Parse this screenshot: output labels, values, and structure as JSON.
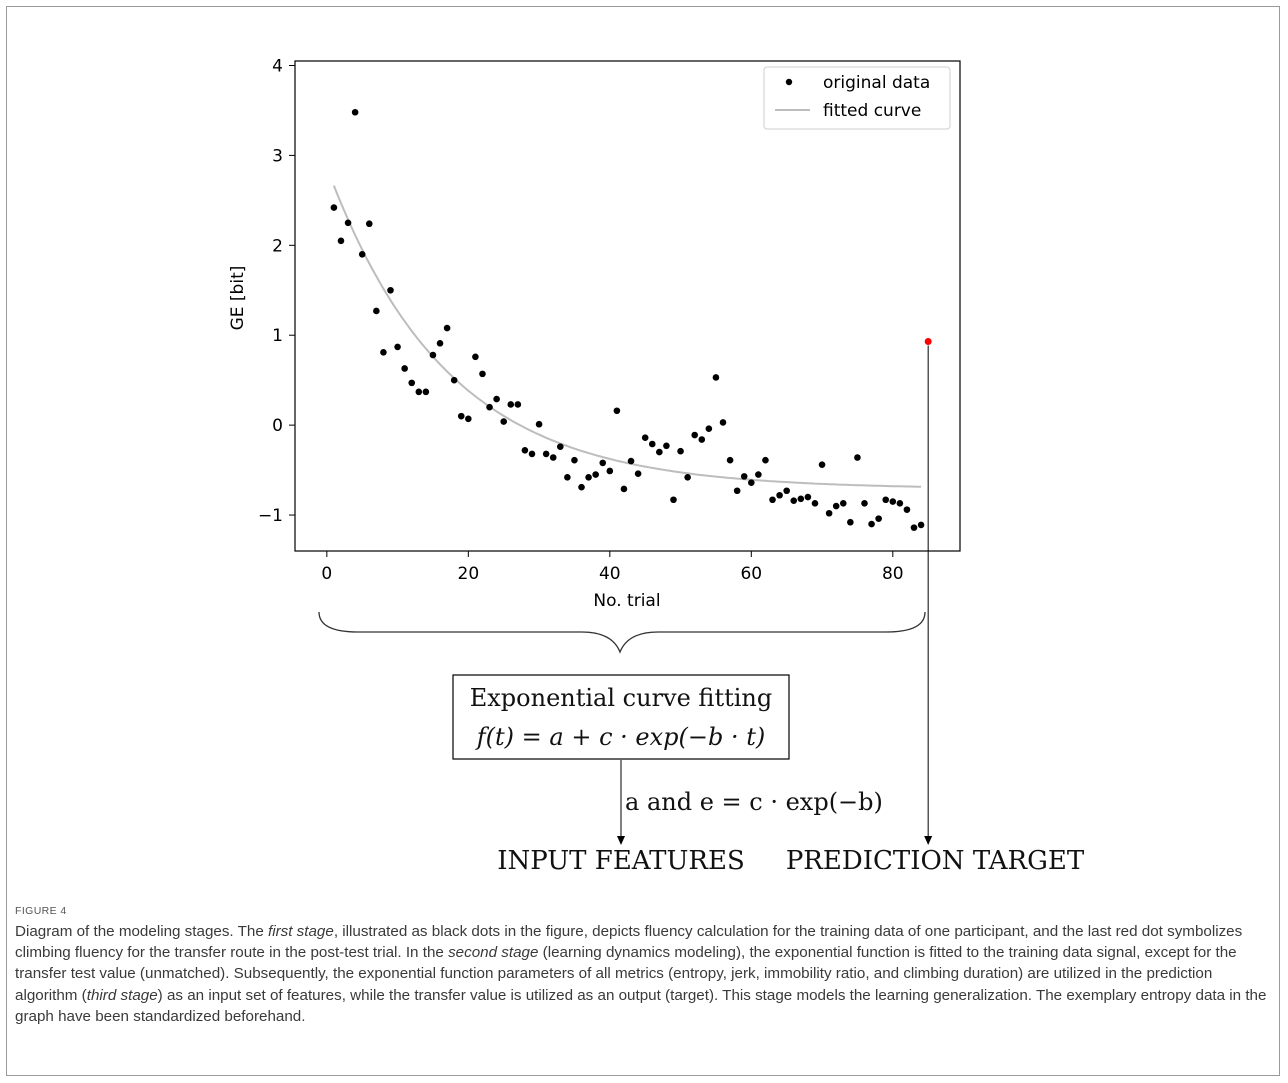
{
  "figure": {
    "label": "FIGURE 4",
    "caption_parts": [
      {
        "text": "Diagram of the modeling stages. The ",
        "italic": false
      },
      {
        "text": "first stage",
        "italic": true
      },
      {
        "text": ", illustrated as black dots in the figure, depicts fluency calculation for the training data of one participant, and the last red dot symbolizes climbing fluency for the transfer route in the post-test trial. In the ",
        "italic": false
      },
      {
        "text": "second stage",
        "italic": true
      },
      {
        "text": " (learning dynamics modeling), the exponential function is fitted to the training data signal, except for the transfer test value (unmatched). Subsequently, the exponential function parameters of all metrics (entropy, jerk, immobility ratio, and climbing duration) are utilized in the prediction algorithm (",
        "italic": false
      },
      {
        "text": "third stage",
        "italic": true
      },
      {
        "text": ") as an input set of features, while the transfer value is utilized as an output (target). This stage models the learning generalization. The exemplary entropy data in the graph have been standardized beforehand.",
        "italic": false
      }
    ]
  },
  "diagram": {
    "box_line1": "Exponential curve fitting",
    "box_line2": "f(t) = a + c · exp(−b · t)",
    "arrow_label": "a and e = c · exp(−b)",
    "input_label": "INPUT FEATURES",
    "target_label": "PREDICTION TARGET"
  },
  "chart_data": {
    "type": "scatter",
    "xlabel": "No. trial",
    "ylabel": "GE  [bit]",
    "xlim": [
      -4.5,
      89.5
    ],
    "ylim": [
      -1.4,
      4.05
    ],
    "xticks": [
      0,
      20,
      40,
      60,
      80
    ],
    "yticks": [
      -1,
      0,
      1,
      2,
      3,
      4
    ],
    "grid": false,
    "legend_position": "top-right",
    "legend": [
      "original data",
      "fitted curve"
    ],
    "colors": {
      "data": "#000000",
      "fit": "#bdbdbd",
      "target": "#ff0000"
    },
    "fit_params": {
      "a": -0.71,
      "c": 3.58,
      "b": 0.0593
    },
    "series": [
      {
        "name": "original data",
        "x": [
          1,
          2,
          3,
          4,
          5,
          6,
          7,
          8,
          9,
          10,
          11,
          12,
          13,
          14,
          15,
          16,
          17,
          18,
          19,
          20,
          21,
          22,
          23,
          24,
          25,
          26,
          27,
          28,
          29,
          30,
          31,
          32,
          33,
          34,
          35,
          36,
          37,
          38,
          39,
          40,
          41,
          42,
          43,
          44,
          45,
          46,
          47,
          48,
          49,
          50,
          51,
          52,
          53,
          54,
          55,
          56,
          57,
          58,
          59,
          60,
          61,
          62,
          63,
          64,
          65,
          66,
          67,
          68,
          69,
          70,
          71,
          72,
          73,
          74,
          75,
          76,
          77,
          78,
          79,
          80,
          81,
          82,
          83,
          84
        ],
        "y": [
          2.42,
          2.05,
          2.25,
          3.48,
          1.9,
          2.24,
          1.27,
          0.81,
          1.5,
          0.87,
          0.63,
          0.47,
          0.37,
          0.37,
          0.78,
          0.91,
          1.08,
          0.5,
          0.1,
          0.07,
          0.76,
          0.57,
          0.2,
          0.29,
          0.04,
          0.23,
          0.23,
          -0.28,
          -0.32,
          0.01,
          -0.32,
          -0.36,
          -0.24,
          -0.58,
          -0.39,
          -0.69,
          -0.58,
          -0.55,
          -0.42,
          -0.51,
          0.16,
          -0.71,
          -0.4,
          -0.54,
          -0.14,
          -0.21,
          -0.3,
          -0.23,
          -0.83,
          -0.29,
          -0.58,
          -0.11,
          -0.16,
          -0.04,
          0.53,
          0.03,
          -0.39,
          -0.73,
          -0.57,
          -0.64,
          -0.55,
          -0.39,
          -0.83,
          -0.78,
          -0.73,
          -0.84,
          -0.82,
          -0.8,
          -0.87,
          -0.44,
          -0.98,
          -0.9,
          -0.87,
          -1.08,
          -0.36,
          -0.87,
          -1.1,
          -1.04,
          -0.83,
          -0.85,
          -0.87,
          -0.94,
          -1.14,
          -1.11
        ]
      },
      {
        "name": "",
        "x": [
          85
        ],
        "y": [
          0.93
        ]
      }
    ]
  }
}
